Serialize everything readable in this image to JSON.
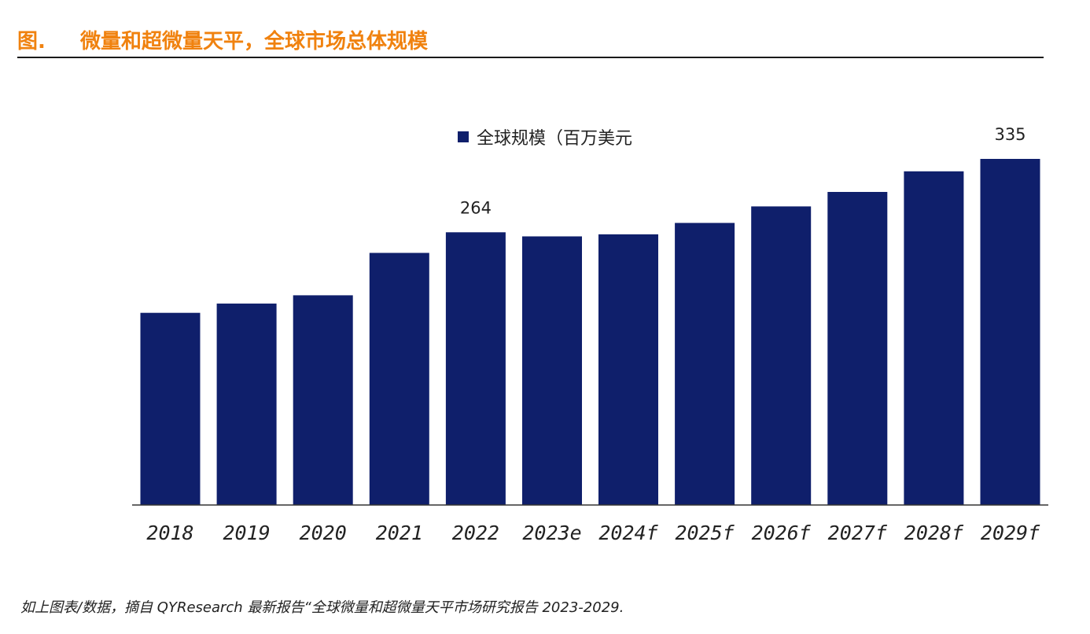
{
  "header": {
    "label": "图.",
    "title": "微量和超微量天平，全球市场总体规模"
  },
  "footer": {
    "source": "如上图表/数据，摘自 QYResearch 最新报告“全球微量和超微量天平市场研究报告 2023-2029."
  },
  "colors": {
    "bar": "#0f1f6b",
    "title": "#f0820f",
    "axis": "#333333",
    "text": "#222222"
  },
  "chart_data": {
    "type": "bar",
    "title": "",
    "xlabel": "",
    "ylabel": "",
    "ylim": [
      0,
      335
    ],
    "legend": {
      "position": "top-center",
      "entries": [
        "全球规模（百万美元"
      ]
    },
    "categories": [
      "2018",
      "2019",
      "2020",
      "2021",
      "2022",
      "2023e",
      "2024f",
      "2025f",
      "2026f",
      "2027f",
      "2028f",
      "2029f"
    ],
    "series": [
      {
        "name": "全球规模（百万美元",
        "values": [
          186,
          195,
          203,
          244,
          264,
          260,
          262,
          273,
          289,
          303,
          323,
          335
        ]
      }
    ],
    "data_labels": [
      {
        "category": "2022",
        "text": "264"
      },
      {
        "category": "2029f",
        "text": "335"
      }
    ],
    "grid": false
  }
}
